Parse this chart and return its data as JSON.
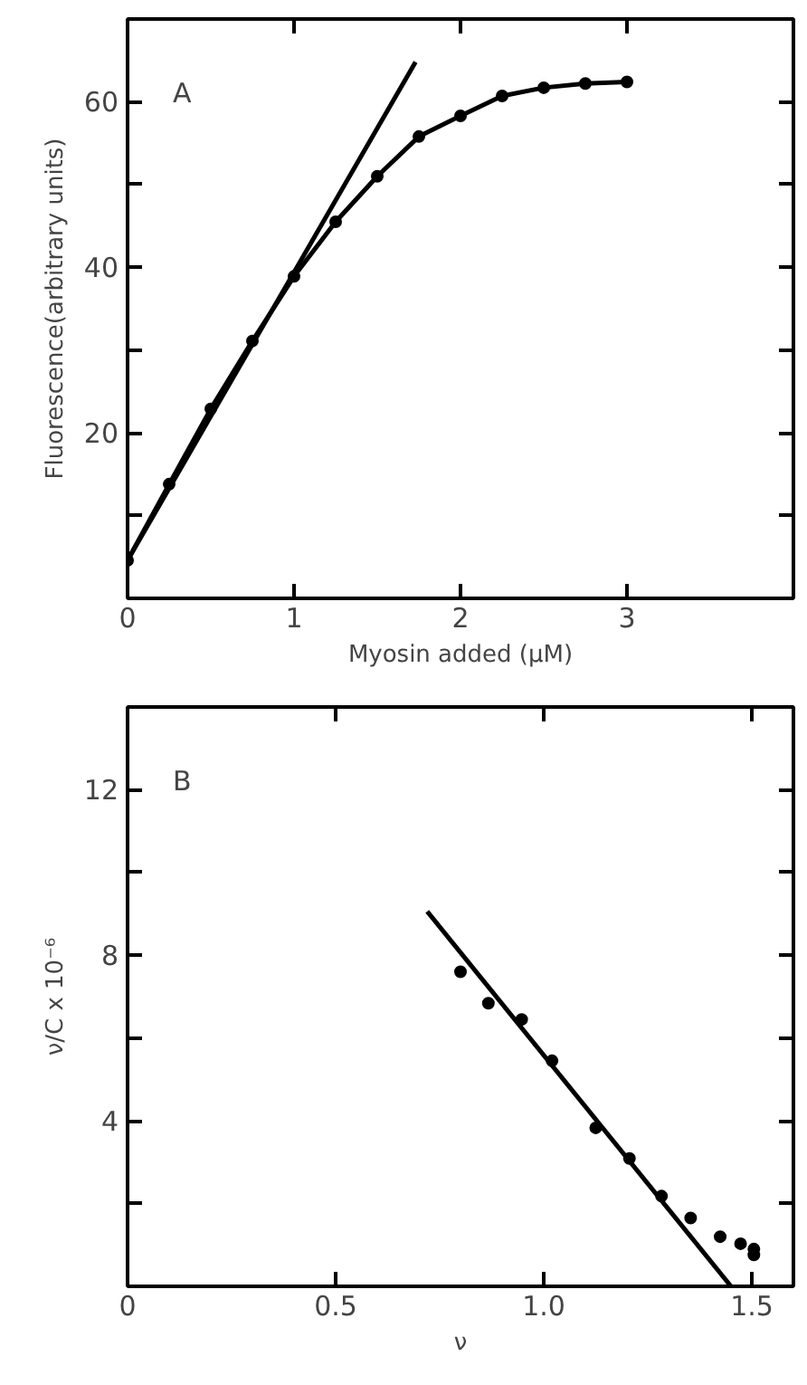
{
  "chart_data": [
    {
      "type": "line",
      "xlabel": "Myosin added (μM)",
      "ylabel": "Fluorescence(arbitrary units)",
      "annotations": [
        "A"
      ],
      "xlim": [
        0,
        4
      ],
      "ylim": [
        0,
        70
      ],
      "xticks": [
        0,
        1,
        2,
        3
      ],
      "yticks": [
        {
          "value": 10,
          "label": null
        },
        20,
        {
          "value": 30,
          "label": null
        },
        40,
        {
          "value": 50,
          "label": null
        },
        60
      ],
      "series": [
        {
          "marker": "circle",
          "color": "#000000",
          "x": [
            0,
            0.25,
            0.5,
            0.75,
            1.0,
            1.25,
            1.5,
            1.75,
            2.0,
            2.25,
            2.5,
            2.75,
            3.0
          ],
          "values": [
            4.6,
            13.8,
            22.9,
            31.1,
            38.9,
            45.5,
            51.0,
            55.8,
            58.3,
            60.7,
            61.7,
            62.2,
            62.4
          ]
        },
        {
          "type": "line",
          "marker": "none",
          "color": "#000000",
          "x": [
            0,
            1.73
          ],
          "values": [
            4.6,
            64.8
          ]
        }
      ]
    },
    {
      "type": "scatter",
      "xlabel": "ν",
      "ylabel": "ν/C x 10⁻⁶",
      "annotations": [
        "B"
      ],
      "xlim": [
        0,
        1.6
      ],
      "ylim": [
        0,
        14
      ],
      "xticks": [
        0,
        0.5,
        {
          "value": 1.0,
          "label": "1.0"
        },
        1.5
      ],
      "yticks": [
        {
          "value": 2,
          "label": null
        },
        4,
        {
          "value": 6,
          "label": null
        },
        8,
        {
          "value": 10,
          "label": null
        },
        12
      ],
      "series": [
        {
          "marker": "circle",
          "color": "#000000",
          "x": [
            0.8,
            0.867,
            0.947,
            1.02,
            1.125,
            1.206,
            1.283,
            1.353,
            1.424,
            1.473,
            1.505,
            1.505
          ],
          "values": [
            7.6,
            6.84,
            6.45,
            5.45,
            3.83,
            3.09,
            2.18,
            1.65,
            1.2,
            1.03,
            0.9,
            0.76
          ]
        },
        {
          "type": "line",
          "marker": "none",
          "color": "#000000",
          "x": [
            0.72,
            1.45
          ],
          "values": [
            9.06,
            0
          ]
        }
      ]
    }
  ]
}
